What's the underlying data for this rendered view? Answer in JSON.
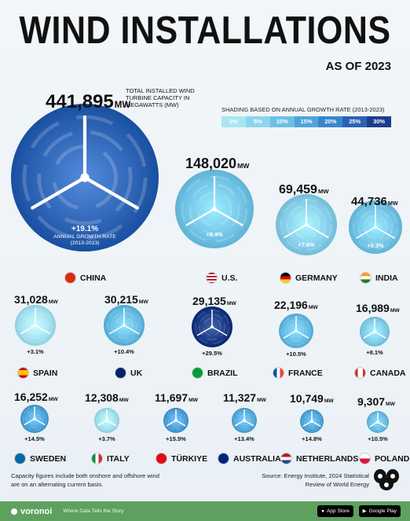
{
  "header": {
    "title": "WIND INSTALLATIONS",
    "subtitle": "AS OF 2023"
  },
  "china_note": {
    "desc": "TOTAL INSTALLED WIND TURBINE CAPACITY IN MEGAWATTS (MW)",
    "rate_label": "ANNUAL GROWTH RATE",
    "rate_period": "(2013-2023)"
  },
  "legend": {
    "title": "SHADING BASED ON ANNUAL GROWTH RATE (2013-2023)",
    "stops": [
      "0%",
      "5%",
      "10%",
      "15%",
      "20%",
      "25%",
      "30%"
    ],
    "colors": [
      "#a9e6f2",
      "#8dd5ec",
      "#6cc0e6",
      "#4ea4da",
      "#3a86cc",
      "#2a63b4",
      "#1b3e8c"
    ]
  },
  "unit": "MW",
  "chart_data": {
    "type": "bubble",
    "title": "WIND INSTALLATIONS",
    "subtitle": "AS OF 2023",
    "value_label": "TOTAL INSTALLED WIND TURBINE CAPACITY IN MEGAWATTS (MW)",
    "color_label": "ANNUAL GROWTH RATE (2013-2023)",
    "countries": [
      {
        "name": "CHINA",
        "capacity": 441895,
        "capacity_label": "441,895",
        "growth": 19.1,
        "growth_label": "+19.1%",
        "color": "#2d63b4",
        "flag": "china"
      },
      {
        "name": "U.S.",
        "capacity": 148020,
        "capacity_label": "148,020",
        "growth": 9.4,
        "growth_label": "+9.4%",
        "color": "#74c6e8",
        "flag": "us"
      },
      {
        "name": "GERMANY",
        "capacity": 69459,
        "capacity_label": "69,459",
        "growth": 7.6,
        "growth_label": "+7.6%",
        "color": "#86d0eb",
        "flag": "germany"
      },
      {
        "name": "INDIA",
        "capacity": 44736,
        "capacity_label": "44,736",
        "growth": 9.3,
        "growth_label": "+9.3%",
        "color": "#74c6e8",
        "flag": "india"
      },
      {
        "name": "SPAIN",
        "capacity": 31028,
        "capacity_label": "31,028",
        "growth": 3.1,
        "growth_label": "+3.1%",
        "color": "#a4e3f1",
        "flag": "spain"
      },
      {
        "name": "UK",
        "capacity": 30215,
        "capacity_label": "30,215",
        "growth": 10.4,
        "growth_label": "+10.4%",
        "color": "#66bce4",
        "flag": "uk"
      },
      {
        "name": "BRAZIL",
        "capacity": 29135,
        "capacity_label": "29,135",
        "growth": 29.5,
        "growth_label": "+29.5%",
        "color": "#1b3a86",
        "flag": "brazil"
      },
      {
        "name": "FRANCE",
        "capacity": 22196,
        "capacity_label": "22,196",
        "growth": 10.5,
        "growth_label": "+10.5%",
        "color": "#66bce4",
        "flag": "france"
      },
      {
        "name": "CANADA",
        "capacity": 16989,
        "capacity_label": "16,989",
        "growth": 8.1,
        "growth_label": "+8.1%",
        "color": "#80cdea",
        "flag": "canada"
      },
      {
        "name": "SWEDEN",
        "capacity": 16252,
        "capacity_label": "16,252",
        "growth": 14.5,
        "growth_label": "+14.5%",
        "color": "#4ea4da",
        "flag": "sweden"
      },
      {
        "name": "ITALY",
        "capacity": 12308,
        "capacity_label": "12,308",
        "growth": 3.7,
        "growth_label": "+3.7%",
        "color": "#a0e1f0",
        "flag": "italy"
      },
      {
        "name": "TÜRKIYE",
        "capacity": 11697,
        "capacity_label": "11,697",
        "growth": 15.5,
        "growth_label": "+15.5%",
        "color": "#4a9fd8",
        "flag": "turkiye"
      },
      {
        "name": "AUSTRALIA",
        "capacity": 11327,
        "capacity_label": "11,327",
        "growth": 13.4,
        "growth_label": "+13.4%",
        "color": "#55aadd",
        "flag": "australia"
      },
      {
        "name": "NETHERLANDS",
        "capacity": 10749,
        "capacity_label": "10,749",
        "growth": 14.8,
        "growth_label": "+14.8%",
        "color": "#4ea4da",
        "flag": "netherlands"
      },
      {
        "name": "POLAND",
        "capacity": 9307,
        "capacity_label": "9,307",
        "growth": 10.5,
        "growth_label": "+10.5%",
        "color": "#66bce4",
        "flag": "poland"
      }
    ]
  },
  "footer": {
    "note": "Capacity figures include both onshore and offshore wind are on an alternating current basis.",
    "source_line1": "Source: Energy Institute, 2024 Statistical",
    "source_line2": "Review of World Energy",
    "brand": "voronoi",
    "tagline": "Where Data Tells the Story",
    "app_store": "App Store",
    "google_play": "Google Play"
  }
}
